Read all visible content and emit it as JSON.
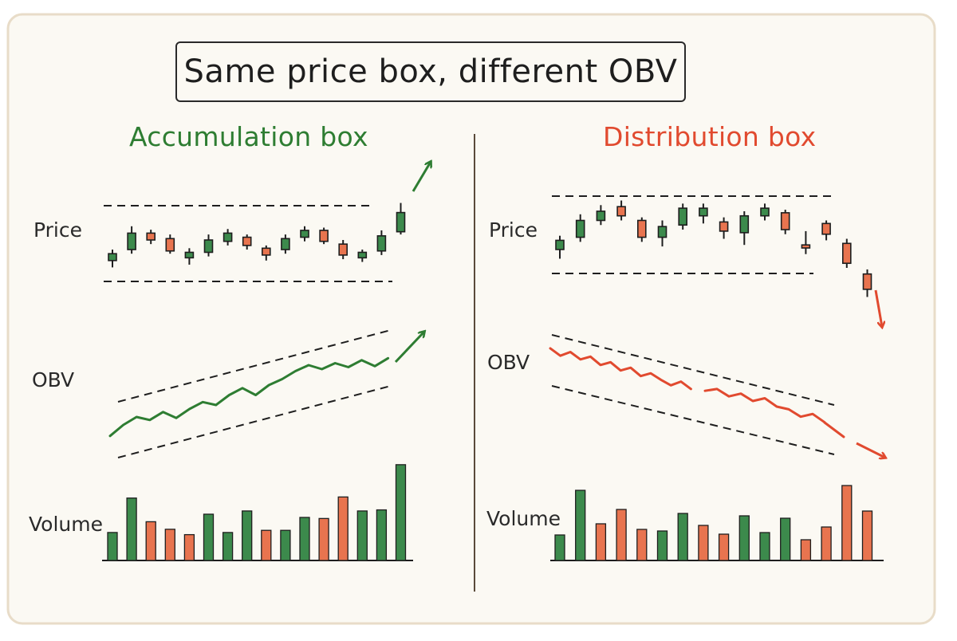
{
  "title": "Same price box, different OBV",
  "colors": {
    "background": "#fbf9f3",
    "frame": "#e8dcc8",
    "up": "#3c8a4c",
    "down": "#e8744f",
    "accumulation": "#2e7d32",
    "distribution": "#e14a2f",
    "ink": "#2a2a2a"
  },
  "panels": {
    "accumulation": {
      "heading": "Accumulation box",
      "labels": {
        "price": "Price",
        "obv": "OBV",
        "volume": "Volume"
      },
      "candles": [
        {
          "dir": "up",
          "open": 2.0,
          "close": 3.0,
          "high": 3.6,
          "low": 1.0
        },
        {
          "dir": "up",
          "open": 3.6,
          "close": 6.0,
          "high": 7.0,
          "low": 3.0
        },
        {
          "dir": "down",
          "open": 6.0,
          "close": 5.0,
          "high": 6.5,
          "low": 4.4
        },
        {
          "dir": "down",
          "open": 5.2,
          "close": 3.4,
          "high": 5.8,
          "low": 3.0
        },
        {
          "dir": "up",
          "open": 2.4,
          "close": 3.2,
          "high": 3.8,
          "low": 1.4
        },
        {
          "dir": "up",
          "open": 3.2,
          "close": 5.0,
          "high": 5.8,
          "low": 2.6
        },
        {
          "dir": "up",
          "open": 4.8,
          "close": 6.0,
          "high": 6.6,
          "low": 4.2
        },
        {
          "dir": "down",
          "open": 5.4,
          "close": 4.2,
          "high": 5.8,
          "low": 3.6
        },
        {
          "dir": "down",
          "open": 3.8,
          "close": 2.8,
          "high": 4.2,
          "low": 2.0
        },
        {
          "dir": "up",
          "open": 3.6,
          "close": 5.2,
          "high": 5.8,
          "low": 3.0
        },
        {
          "dir": "up",
          "open": 5.4,
          "close": 6.4,
          "high": 7.0,
          "low": 4.8
        },
        {
          "dir": "down",
          "open": 6.4,
          "close": 4.8,
          "high": 6.8,
          "low": 4.4
        },
        {
          "dir": "down",
          "open": 4.4,
          "close": 2.8,
          "high": 5.0,
          "low": 2.2
        },
        {
          "dir": "up",
          "open": 2.4,
          "close": 3.2,
          "high": 3.6,
          "low": 1.8
        },
        {
          "dir": "up",
          "open": 3.4,
          "close": 5.6,
          "high": 6.4,
          "low": 2.8
        },
        {
          "dir": "up",
          "open": 6.2,
          "close": 9.0,
          "high": 10.4,
          "low": 5.8
        }
      ],
      "obv": [
        0.5,
        1.6,
        2.4,
        2.1,
        2.9,
        2.3,
        3.2,
        3.9,
        3.6,
        4.6,
        5.3,
        4.6,
        5.6,
        6.2,
        7.0,
        7.6,
        7.2,
        7.8,
        7.4,
        8.1,
        7.5,
        8.3
      ],
      "volume": [
        {
          "dir": "up",
          "value": 2.6
        },
        {
          "dir": "up",
          "value": 5.8
        },
        {
          "dir": "down",
          "value": 3.6
        },
        {
          "dir": "down",
          "value": 2.9
        },
        {
          "dir": "down",
          "value": 2.4
        },
        {
          "dir": "up",
          "value": 4.3
        },
        {
          "dir": "up",
          "value": 2.6
        },
        {
          "dir": "up",
          "value": 4.6
        },
        {
          "dir": "down",
          "value": 2.8
        },
        {
          "dir": "up",
          "value": 2.8
        },
        {
          "dir": "up",
          "value": 4.0
        },
        {
          "dir": "down",
          "value": 3.9
        },
        {
          "dir": "down",
          "value": 5.9
        },
        {
          "dir": "up",
          "value": 4.6
        },
        {
          "dir": "up",
          "value": 4.7
        },
        {
          "dir": "up",
          "value": 8.9
        }
      ]
    },
    "distribution": {
      "heading": "Distribution box",
      "labels": {
        "price": "Price",
        "obv": "OBV",
        "volume": "Volume"
      },
      "candles": [
        {
          "dir": "up",
          "open": 2.4,
          "close": 3.6,
          "high": 4.2,
          "low": 1.2
        },
        {
          "dir": "up",
          "open": 4.0,
          "close": 6.2,
          "high": 7.0,
          "low": 3.4
        },
        {
          "dir": "up",
          "open": 6.2,
          "close": 7.4,
          "high": 8.2,
          "low": 5.6
        },
        {
          "dir": "down",
          "open": 8.0,
          "close": 6.8,
          "high": 8.8,
          "low": 6.2
        },
        {
          "dir": "down",
          "open": 6.2,
          "close": 4.0,
          "high": 6.6,
          "low": 3.4
        },
        {
          "dir": "up",
          "open": 4.0,
          "close": 5.4,
          "high": 6.2,
          "low": 2.8
        },
        {
          "dir": "up",
          "open": 5.6,
          "close": 7.8,
          "high": 8.4,
          "low": 5.0
        },
        {
          "dir": "up",
          "open": 6.8,
          "close": 7.8,
          "high": 8.4,
          "low": 5.8
        },
        {
          "dir": "down",
          "open": 6.0,
          "close": 4.8,
          "high": 6.6,
          "low": 3.8
        },
        {
          "dir": "up",
          "open": 4.6,
          "close": 6.8,
          "high": 7.4,
          "low": 3.0
        },
        {
          "dir": "up",
          "open": 6.8,
          "close": 7.8,
          "high": 8.4,
          "low": 6.2
        },
        {
          "dir": "down",
          "open": 7.2,
          "close": 5.0,
          "high": 7.6,
          "low": 4.4
        },
        {
          "dir": "down",
          "open": 3.0,
          "close": 2.6,
          "high": 4.8,
          "low": 1.8
        },
        {
          "dir": "down",
          "open": 5.8,
          "close": 4.4,
          "high": 6.2,
          "low": 3.6
        },
        {
          "dir": "down",
          "open": 3.2,
          "close": 0.6,
          "high": 3.8,
          "low": 0.0
        },
        {
          "dir": "down",
          "open": -0.8,
          "close": -2.8,
          "high": -0.2,
          "low": -3.8
        }
      ],
      "obv": [
        8.2,
        7.4,
        7.8,
        7.0,
        7.3,
        6.4,
        6.7,
        5.8,
        6.1,
        5.2,
        5.5,
        4.8,
        4.2,
        4.6,
        3.8
      ],
      "obv2": [
        3.6,
        3.8,
        3.0,
        3.3,
        2.5,
        2.8,
        1.9,
        1.6,
        0.8,
        1.1,
        0.2
      ],
      "volume": [
        {
          "dir": "up",
          "value": 3.2
        },
        {
          "dir": "up",
          "value": 8.8
        },
        {
          "dir": "down",
          "value": 4.6
        },
        {
          "dir": "down",
          "value": 6.4
        },
        {
          "dir": "down",
          "value": 3.9
        },
        {
          "dir": "up",
          "value": 3.7
        },
        {
          "dir": "up",
          "value": 5.9
        },
        {
          "dir": "down",
          "value": 4.4
        },
        {
          "dir": "down",
          "value": 3.3
        },
        {
          "dir": "up",
          "value": 5.6
        },
        {
          "dir": "up",
          "value": 3.5
        },
        {
          "dir": "up",
          "value": 5.3
        },
        {
          "dir": "down",
          "value": 2.6
        },
        {
          "dir": "down",
          "value": 4.2
        },
        {
          "dir": "down",
          "value": 9.4
        },
        {
          "dir": "down",
          "value": 6.2
        }
      ]
    }
  }
}
